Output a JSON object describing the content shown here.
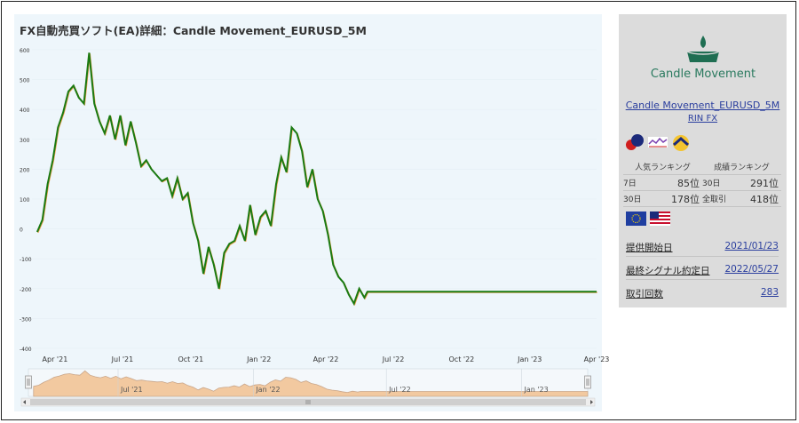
{
  "title": "FX自動売買ソフト(EA)詳細：Candle Movement_EURUSD_5M",
  "chart_data": {
    "type": "line",
    "y_ticks": [
      "600",
      "500",
      "400",
      "300",
      "200",
      "100",
      "0",
      "-100",
      "-200",
      "-300",
      "-400"
    ],
    "x_ticks": [
      "Apr '21",
      "Jul '21",
      "Oct '21",
      "Jan '22",
      "Apr '22",
      "Jul '22",
      "Oct '22",
      "Jan '23",
      "Apr '23"
    ],
    "navigator_ticks": [
      "Jul '21",
      "Jan '22",
      "Jul '22",
      "Jan '23"
    ],
    "ylim": [
      -400,
      600
    ],
    "line_color": "#1a7a12",
    "navigator_fill": "#f2c9a0",
    "series": [
      {
        "x": [
          "2021-03-08",
          "2021-03-15",
          "2021-03-22",
          "2021-03-29",
          "2021-04-05",
          "2021-04-12",
          "2021-04-19",
          "2021-04-26",
          "2021-05-03",
          "2021-05-10",
          "2021-05-17",
          "2021-05-24",
          "2021-05-31",
          "2021-06-07",
          "2021-06-14",
          "2021-06-21",
          "2021-06-28",
          "2021-07-05",
          "2021-07-12",
          "2021-07-19",
          "2021-07-26",
          "2021-08-02",
          "2021-08-09",
          "2021-08-16",
          "2021-08-23",
          "2021-08-30",
          "2021-09-06",
          "2021-09-13",
          "2021-09-20",
          "2021-09-27",
          "2021-10-04",
          "2021-10-11",
          "2021-10-18",
          "2021-10-25",
          "2021-11-01",
          "2021-11-08",
          "2021-11-15",
          "2021-11-22",
          "2021-11-29",
          "2021-12-06",
          "2021-12-13",
          "2021-12-20",
          "2021-12-27",
          "2022-01-03",
          "2022-01-10",
          "2022-01-17",
          "2022-01-24",
          "2022-01-31",
          "2022-02-07",
          "2022-02-14",
          "2022-02-21",
          "2022-02-28",
          "2022-03-07",
          "2022-03-14",
          "2022-03-21",
          "2022-03-28",
          "2022-04-04",
          "2022-04-11",
          "2022-04-18",
          "2022-04-25",
          "2022-05-02",
          "2022-05-09",
          "2022-05-16",
          "2022-05-23",
          "2022-05-27",
          "2023-04-01"
        ],
        "y": [
          -10,
          30,
          150,
          230,
          340,
          390,
          460,
          480,
          440,
          420,
          590,
          420,
          360,
          320,
          380,
          300,
          380,
          280,
          360,
          290,
          210,
          230,
          200,
          180,
          160,
          170,
          110,
          170,
          100,
          120,
          20,
          -40,
          -150,
          -60,
          -120,
          -200,
          -80,
          -50,
          -40,
          10,
          -40,
          80,
          -20,
          40,
          60,
          10,
          150,
          240,
          190,
          340,
          320,
          260,
          140,
          200,
          100,
          60,
          -20,
          -120,
          -160,
          -180,
          -220,
          -250,
          -200,
          -230,
          -210,
          -210
        ]
      }
    ]
  },
  "info": {
    "logo_text": "Candle Movement",
    "ea_name": "Candle Movement_EURUSD_5M",
    "developer": "RIN FX",
    "ranking_popular_label": "人気ランキング",
    "ranking_perf_label": "成績ランキング",
    "rows": [
      {
        "a_label": "7日",
        "a_value": "85位",
        "b_label": "30日",
        "b_value": "291位"
      },
      {
        "a_label": "30日",
        "a_value": "178位",
        "b_label": "全取引",
        "b_value": "418位"
      }
    ],
    "start_date_label": "提供開始日",
    "start_date": "2021/01/23",
    "last_signal_label": "最終シグナル約定日",
    "last_signal": "2022/05/27",
    "trades_label": "取引回数",
    "trades": "283"
  }
}
